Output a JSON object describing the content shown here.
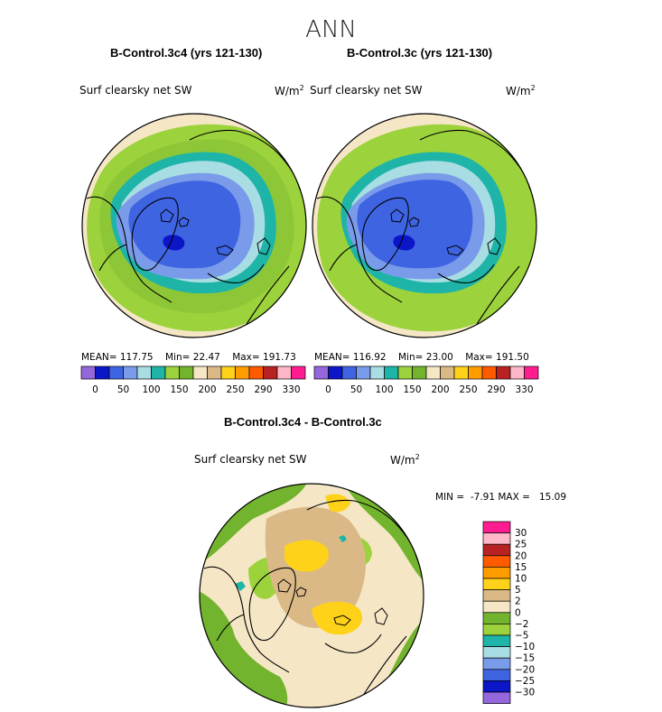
{
  "page": {
    "title": "ANN"
  },
  "colors": {
    "ocean": "#ffffff",
    "coast": "#000000",
    "panel_palette": [
      "#9467dc",
      "#0b16c7",
      "#3e64e2",
      "#7a9bea",
      "#a8dde3",
      "#1eb4a8",
      "#9cd23c",
      "#72b42e",
      "#f5e7c6",
      "#dbb987",
      "#ffd21a",
      "#ff9d00",
      "#ff5a00",
      "#b92222",
      "#ffb6c8",
      "#ff1c90"
    ],
    "diff_palette": [
      "#ff1c90",
      "#ffb6c8",
      "#b92222",
      "#ff5a00",
      "#ff9d00",
      "#ffd21a",
      "#dbb987",
      "#f5e7c6",
      "#72b42e",
      "#9cd23c",
      "#1eb4a8",
      "#a8dde3",
      "#7a9bea",
      "#3e64e2",
      "#0b16c7",
      "#9467dc"
    ]
  },
  "panels": [
    {
      "id": "left",
      "title": "B-Control.3c4 (yrs 121-130)",
      "variable": "Surf clearsky net SW",
      "units": "W/m",
      "units_exp": "2",
      "stats_label_mean": "MEAN=",
      "stats_mean": "117.75",
      "stats_label_min": "Min=",
      "stats_min": "22.47",
      "stats_label_max": "Max=",
      "stats_max": "191.73",
      "colorbar_labels": [
        "0",
        "50",
        "100",
        "150",
        "200",
        "250",
        "290",
        "330"
      ]
    },
    {
      "id": "right",
      "title": "B-Control.3c (yrs 121-130)",
      "variable": "Surf clearsky net SW",
      "units": "W/m",
      "units_exp": "2",
      "stats_label_mean": "MEAN=",
      "stats_mean": "116.92",
      "stats_label_min": "Min=",
      "stats_min": "23.00",
      "stats_label_max": "Max=",
      "stats_max": "191.50",
      "colorbar_labels": [
        "0",
        "50",
        "100",
        "150",
        "200",
        "250",
        "290",
        "330"
      ]
    }
  ],
  "diff": {
    "title": "B-Control.3c4 - B-Control.3c",
    "variable": "Surf clearsky net SW",
    "units": "W/m",
    "units_exp": "2",
    "label_min": "MIN =",
    "min": "-7.91",
    "label_max": "MAX =",
    "max": "15.09",
    "colorbar_labels": [
      "30",
      "25",
      "20",
      "15",
      "10",
      "5",
      "2",
      "0",
      "-2",
      "-5",
      "-10",
      "-15",
      "-20",
      "-25",
      "-30"
    ]
  },
  "chart_data": [
    {
      "type": "heatmap",
      "title": "B-Control.3c4 (yrs 121-130)",
      "subtitle": "Surf clearsky net SW",
      "units": "W/m^2",
      "projection": "polar stereographic (Arctic)",
      "mean": 117.75,
      "min": 22.47,
      "max": 191.73,
      "contour_levels": [
        0,
        25,
        50,
        75,
        100,
        125,
        150,
        175,
        200,
        225,
        250,
        270,
        290,
        310,
        330
      ],
      "colorbar_tick_labels": [
        "0",
        "50",
        "100",
        "150",
        "200",
        "250",
        "290",
        "330"
      ]
    },
    {
      "type": "heatmap",
      "title": "B-Control.3c (yrs 121-130)",
      "subtitle": "Surf clearsky net SW",
      "units": "W/m^2",
      "projection": "polar stereographic (Arctic)",
      "mean": 116.92,
      "min": 23.0,
      "max": 191.5,
      "contour_levels": [
        0,
        25,
        50,
        75,
        100,
        125,
        150,
        175,
        200,
        225,
        250,
        270,
        290,
        310,
        330
      ],
      "colorbar_tick_labels": [
        "0",
        "50",
        "100",
        "150",
        "200",
        "250",
        "290",
        "330"
      ]
    },
    {
      "type": "heatmap",
      "title": "B-Control.3c4 - B-Control.3c",
      "subtitle": "Surf clearsky net SW",
      "units": "W/m^2",
      "projection": "polar stereographic (Arctic)",
      "min": -7.91,
      "max": 15.09,
      "contour_levels": [
        -30,
        -25,
        -20,
        -15,
        -10,
        -5,
        -2,
        0,
        2,
        5,
        10,
        15,
        20,
        25,
        30
      ],
      "colorbar_tick_labels": [
        "30",
        "25",
        "20",
        "15",
        "10",
        "5",
        "2",
        "0",
        "-2",
        "-5",
        "-10",
        "-15",
        "-20",
        "-25",
        "-30"
      ]
    }
  ]
}
